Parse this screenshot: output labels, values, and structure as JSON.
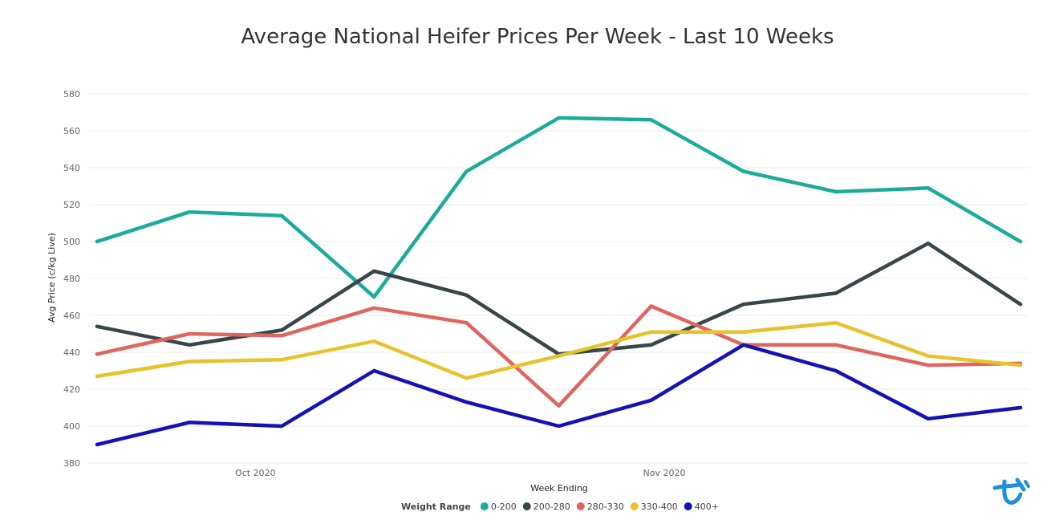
{
  "chart_data": {
    "type": "line",
    "title": "Average National Heifer Prices Per Week - Last 10 Weeks",
    "xlabel": "Week Ending",
    "ylabel": "Avg Price (c/kg Live)",
    "ylim": [
      380,
      580
    ],
    "yticks": [
      380,
      400,
      420,
      440,
      460,
      480,
      500,
      520,
      540,
      560,
      580
    ],
    "x": [
      "2020-09-19",
      "2020-09-26",
      "2020-10-03",
      "2020-10-10",
      "2020-10-17",
      "2020-10-24",
      "2020-10-31",
      "2020-11-07",
      "2020-11-14",
      "2020-11-21",
      "2020-11-28"
    ],
    "xticks": [
      {
        "label": "Oct 2020",
        "date": "2020-10-01"
      },
      {
        "label": "Nov 2020",
        "date": "2020-11-01"
      }
    ],
    "grid": true,
    "legend_position": "bottom",
    "legend_title": "Weight Range",
    "series": [
      {
        "name": "0-200",
        "color": "#1aab9b",
        "values": [
          500,
          516,
          514,
          470,
          538,
          567,
          566,
          538,
          527,
          529,
          500
        ]
      },
      {
        "name": "200-280",
        "color": "#374649",
        "values": [
          454,
          444,
          452,
          484,
          471,
          439,
          444,
          466,
          472,
          499,
          466
        ]
      },
      {
        "name": "280-330",
        "color": "#e0655f",
        "values": [
          439,
          450,
          449,
          464,
          456,
          411,
          465,
          444,
          444,
          433,
          434
        ]
      },
      {
        "name": "330-400",
        "color": "#e8c22a",
        "values": [
          427,
          435,
          436,
          446,
          426,
          438,
          451,
          451,
          456,
          438,
          433
        ]
      },
      {
        "name": "400+",
        "color": "#1212b8",
        "values": [
          390,
          402,
          400,
          430,
          413,
          400,
          414,
          444,
          430,
          404,
          410
        ]
      }
    ]
  },
  "logo": {
    "name": "brand-logo",
    "color": "#1e8fd8"
  }
}
